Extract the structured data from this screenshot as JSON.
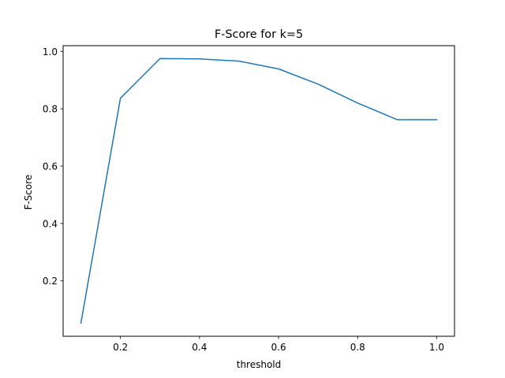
{
  "chart_data": {
    "type": "line",
    "title": "F-Score for k=5",
    "xlabel": "threshold",
    "ylabel": "F-Score",
    "xlim": [
      0.055,
      1.045
    ],
    "ylim": [
      0.007,
      1.02
    ],
    "grid": false,
    "x_ticks": [
      0.2,
      0.4,
      0.6,
      0.8,
      1.0
    ],
    "x_tick_labels": [
      "0.2",
      "0.4",
      "0.6",
      "0.8",
      "1.0"
    ],
    "y_ticks": [
      0.2,
      0.4,
      0.6,
      0.8,
      1.0
    ],
    "y_tick_labels": [
      "0.2",
      "0.4",
      "0.6",
      "0.8",
      "1.0"
    ],
    "series": [
      {
        "color": "#1f77b4",
        "x": [
          0.1,
          0.2,
          0.3,
          0.4,
          0.5,
          0.6,
          0.7,
          0.8,
          0.9,
          1.0
        ],
        "y": [
          0.053,
          0.837,
          0.975,
          0.974,
          0.966,
          0.939,
          0.886,
          0.82,
          0.762,
          0.762
        ]
      }
    ]
  }
}
